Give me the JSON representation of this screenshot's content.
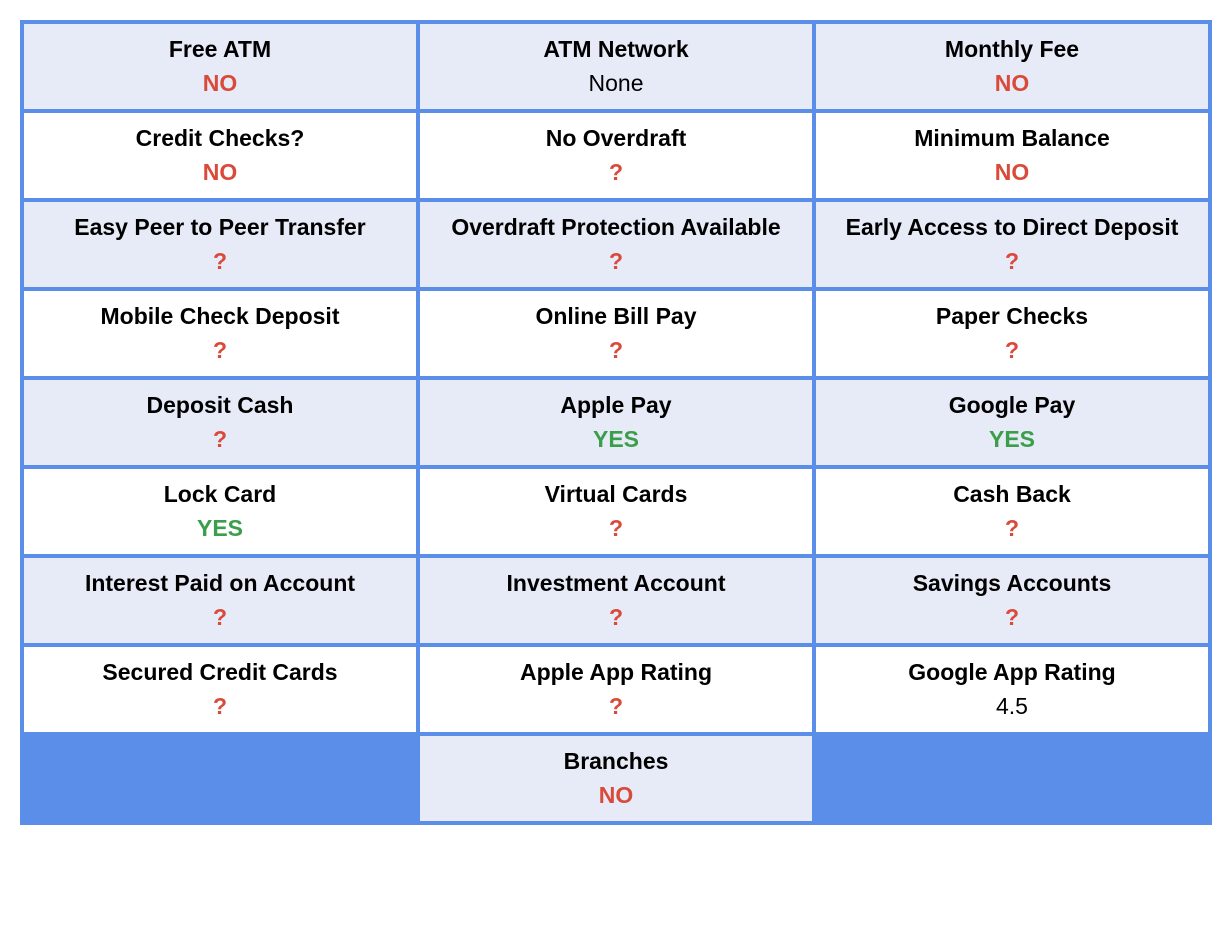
{
  "table": {
    "columns": 3,
    "border_color": "#5a8ee8",
    "row_bg_alt": "#e6ebf7",
    "row_bg_default": "#ffffff",
    "label_color": "#000000",
    "label_fontsize": 23,
    "label_weight": "bold",
    "value_fontsize": 23,
    "value_colors": {
      "no": "#d94a3a",
      "yes": "#3a9e4a",
      "unknown": "#d94a3a",
      "text": "#000000"
    },
    "cells": [
      {
        "label": "Free ATM",
        "value": "NO",
        "type": "no",
        "shaded": true
      },
      {
        "label": "ATM Network",
        "value": "None",
        "type": "text",
        "shaded": true
      },
      {
        "label": "Monthly Fee",
        "value": "NO",
        "type": "no",
        "shaded": true
      },
      {
        "label": "Credit Checks?",
        "value": "NO",
        "type": "no",
        "shaded": false
      },
      {
        "label": "No Overdraft",
        "value": "?",
        "type": "unknown",
        "shaded": false
      },
      {
        "label": "Minimum Balance",
        "value": "NO",
        "type": "no",
        "shaded": false
      },
      {
        "label": "Easy Peer to Peer Transfer",
        "value": "?",
        "type": "unknown",
        "shaded": true
      },
      {
        "label": "Overdraft Protection Available",
        "value": "?",
        "type": "unknown",
        "shaded": true
      },
      {
        "label": "Early Access to Direct Deposit",
        "value": "?",
        "type": "unknown",
        "shaded": true
      },
      {
        "label": "Mobile Check Deposit",
        "value": "?",
        "type": "unknown",
        "shaded": false
      },
      {
        "label": "Online Bill Pay",
        "value": "?",
        "type": "unknown",
        "shaded": false
      },
      {
        "label": "Paper Checks",
        "value": "?",
        "type": "unknown",
        "shaded": false
      },
      {
        "label": "Deposit Cash",
        "value": "?",
        "type": "unknown",
        "shaded": true
      },
      {
        "label": "Apple Pay",
        "value": "YES",
        "type": "yes",
        "shaded": true
      },
      {
        "label": "Google Pay",
        "value": "YES",
        "type": "yes",
        "shaded": true
      },
      {
        "label": "Lock Card",
        "value": "YES",
        "type": "yes",
        "shaded": false
      },
      {
        "label": "Virtual Cards",
        "value": "?",
        "type": "unknown",
        "shaded": false
      },
      {
        "label": "Cash Back",
        "value": "?",
        "type": "unknown",
        "shaded": false
      },
      {
        "label": "Interest Paid on Account",
        "value": "?",
        "type": "unknown",
        "shaded": true
      },
      {
        "label": "Investment Account",
        "value": "?",
        "type": "unknown",
        "shaded": true
      },
      {
        "label": "Savings Accounts",
        "value": "?",
        "type": "unknown",
        "shaded": true
      },
      {
        "label": "Secured Credit Cards",
        "value": "?",
        "type": "unknown",
        "shaded": false
      },
      {
        "label": "Apple App Rating",
        "value": "?",
        "type": "unknown",
        "shaded": false
      },
      {
        "label": "Google App Rating",
        "value": "4.5",
        "type": "text",
        "shaded": false
      },
      {
        "label": "",
        "value": "",
        "type": "empty",
        "shaded": false,
        "empty": true
      },
      {
        "label": "Branches",
        "value": "NO",
        "type": "no",
        "shaded": true
      },
      {
        "label": "",
        "value": "",
        "type": "empty",
        "shaded": false,
        "empty": true
      }
    ]
  }
}
